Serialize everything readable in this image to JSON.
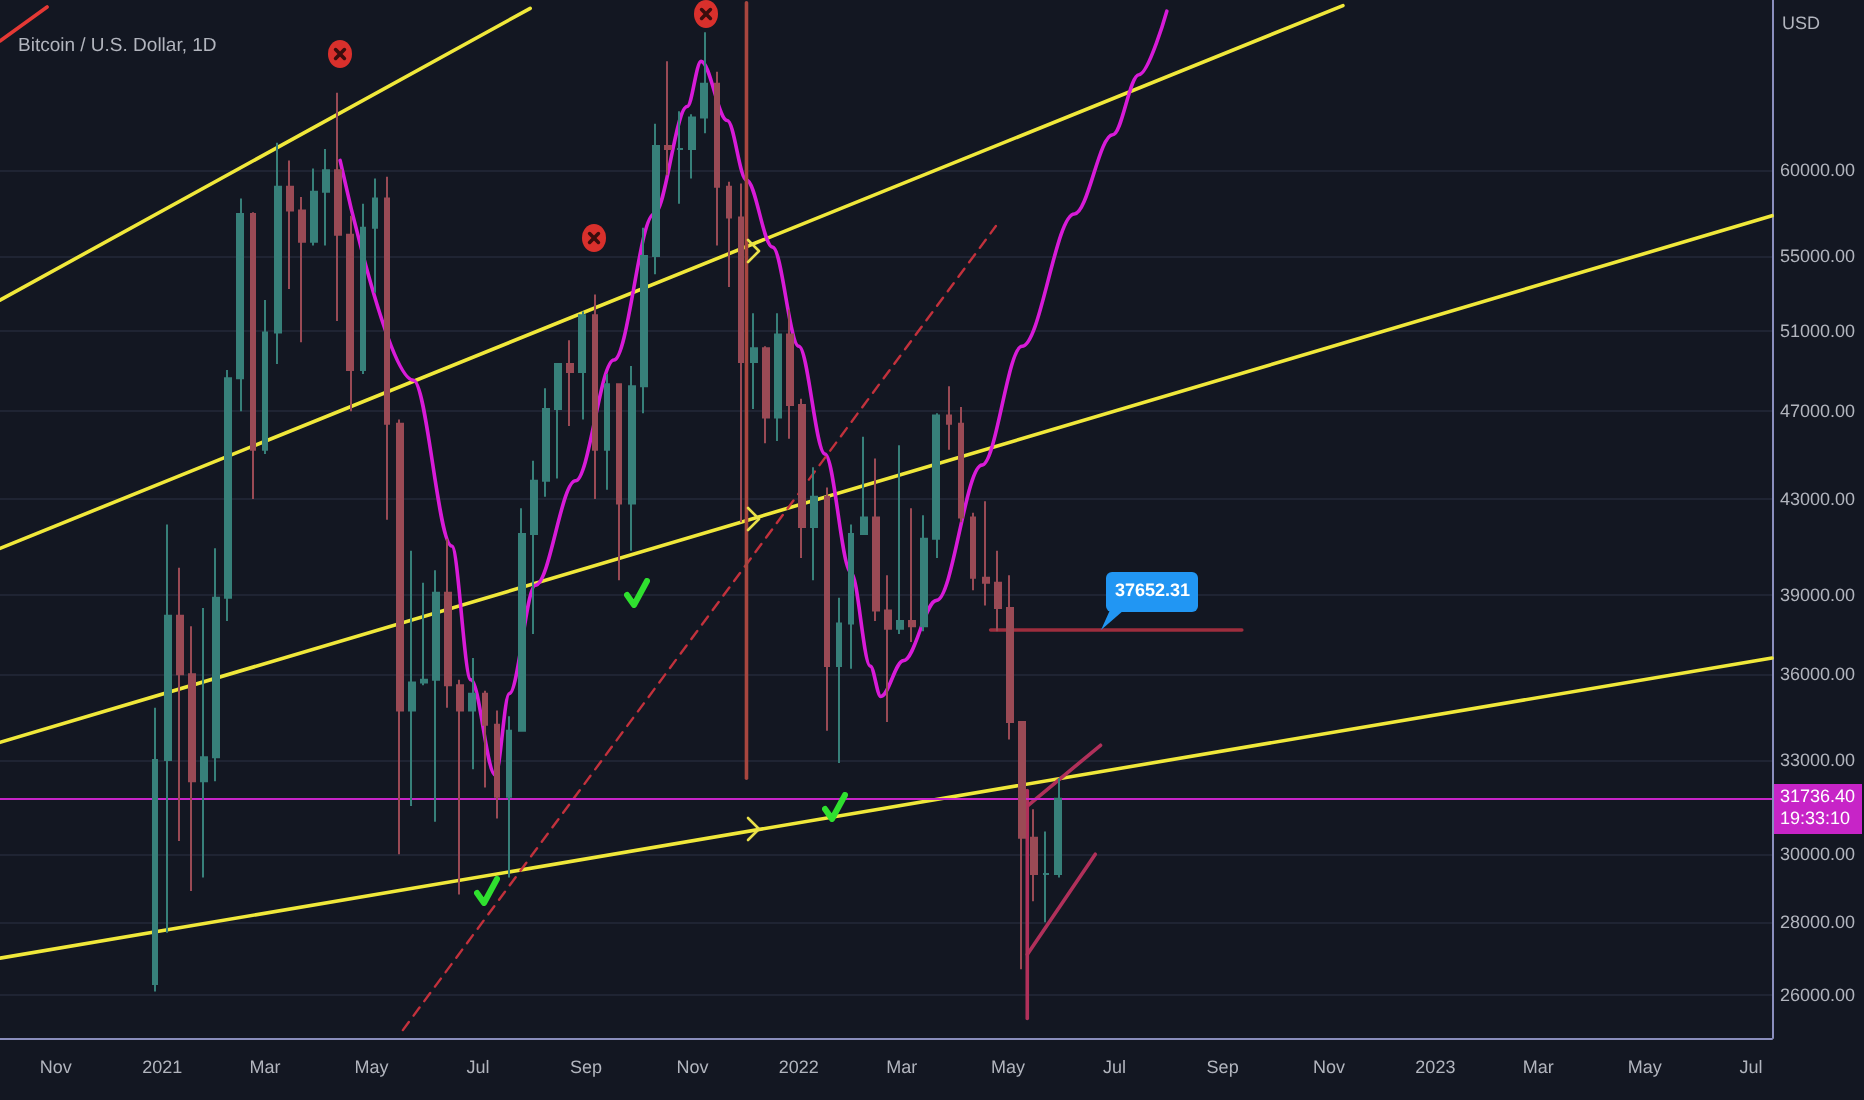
{
  "chart_data": {
    "type": "candlestick",
    "title": "Bitcoin / U.S. Dollar, 1D",
    "ylabel": "USD",
    "x": [
      "2020-12-28",
      "2021-01-04",
      "2021-01-11",
      "2021-01-18",
      "2021-01-25",
      "2021-02-01",
      "2021-02-08",
      "2021-02-15",
      "2021-02-22",
      "2021-03-01",
      "2021-03-08",
      "2021-03-15",
      "2021-03-22",
      "2021-03-29",
      "2021-04-05",
      "2021-04-12",
      "2021-04-19",
      "2021-04-26",
      "2021-05-03",
      "2021-05-10",
      "2021-05-17",
      "2021-05-24",
      "2021-05-31",
      "2021-06-07",
      "2021-06-14",
      "2021-06-21",
      "2021-06-28",
      "2021-07-05",
      "2021-07-12",
      "2021-07-19",
      "2021-07-26",
      "2021-08-02",
      "2021-08-09",
      "2021-08-16",
      "2021-08-23",
      "2021-08-30",
      "2021-09-06",
      "2021-09-13",
      "2021-09-20",
      "2021-09-27",
      "2021-10-04",
      "2021-10-11",
      "2021-10-18",
      "2021-10-25",
      "2021-11-01",
      "2021-11-08",
      "2021-11-15",
      "2021-11-22",
      "2021-11-29",
      "2021-12-06",
      "2021-12-13",
      "2021-12-20",
      "2021-12-27",
      "2022-01-03",
      "2022-01-10",
      "2022-01-17",
      "2022-01-24",
      "2022-01-31",
      "2022-02-07",
      "2022-02-14",
      "2022-02-21",
      "2022-02-28",
      "2022-03-07",
      "2022-03-14",
      "2022-03-21",
      "2022-03-28",
      "2022-04-04",
      "2022-04-11",
      "2022-04-18",
      "2022-04-25",
      "2022-05-02",
      "2022-05-09",
      "2022-05-16",
      "2022-05-23",
      "2022-05-30"
    ],
    "ohlc": [
      [
        26300,
        34800,
        26100,
        33000
      ],
      [
        33000,
        41900,
        27700,
        38200
      ],
      [
        38200,
        40100,
        30400,
        36000
      ],
      [
        36000,
        37800,
        28900,
        32300
      ],
      [
        32300,
        38500,
        29300,
        33100
      ],
      [
        33100,
        40900,
        32300,
        38900
      ],
      [
        38900,
        49000,
        38000,
        48600
      ],
      [
        48600,
        58300,
        47000,
        57400
      ],
      [
        57400,
        57500,
        43000,
        45200
      ],
      [
        45200,
        52600,
        45000,
        50900
      ],
      [
        50900,
        61700,
        49300,
        59000
      ],
      [
        59000,
        60600,
        53200,
        57600
      ],
      [
        57600,
        58400,
        50400,
        55800
      ],
      [
        55800,
        60100,
        55600,
        58700
      ],
      [
        58700,
        61300,
        55600,
        60000
      ],
      [
        60000,
        64900,
        51500,
        56200
      ],
      [
        56200,
        57300,
        47000,
        49000
      ],
      [
        49000,
        58000,
        48800,
        56600
      ],
      [
        56600,
        59500,
        53000,
        58300
      ],
      [
        58300,
        59600,
        42100,
        46400
      ],
      [
        46400,
        46600,
        30000,
        34700
      ],
      [
        34700,
        40800,
        31500,
        35700
      ],
      [
        35700,
        39500,
        35600,
        35800
      ],
      [
        35800,
        40000,
        31000,
        39100
      ],
      [
        39100,
        41300,
        34800,
        35600
      ],
      [
        35600,
        35800,
        28800,
        34700
      ],
      [
        34700,
        36600,
        32700,
        35300
      ],
      [
        35300,
        35400,
        32100,
        34200
      ],
      [
        34200,
        34700,
        31100,
        31800
      ],
      [
        31800,
        34500,
        29300,
        34000
      ],
      [
        34000,
        42600,
        34000,
        41500
      ],
      [
        41500,
        44700,
        37500,
        43800
      ],
      [
        43800,
        48100,
        43100,
        47100
      ],
      [
        47100,
        49300,
        43900,
        49300
      ],
      [
        49300,
        50500,
        46300,
        48900
      ],
      [
        48900,
        52000,
        46600,
        51800
      ],
      [
        51800,
        52900,
        43000,
        45200
      ],
      [
        45200,
        48800,
        43400,
        48300
      ],
      [
        48300,
        48300,
        39600,
        42800
      ],
      [
        42800,
        49200,
        40800,
        48200
      ],
      [
        48200,
        56600,
        46900,
        55000
      ],
      [
        55000,
        62900,
        54000,
        61500
      ],
      [
        61500,
        67000,
        59700,
        61300
      ],
      [
        61300,
        63700,
        58000,
        61300
      ],
      [
        61300,
        63500,
        59500,
        63300
      ],
      [
        63300,
        69000,
        62300,
        65500
      ],
      [
        65500,
        66300,
        55600,
        59000
      ],
      [
        59000,
        59300,
        53300,
        57200
      ],
      [
        57200,
        59200,
        42000,
        49400
      ],
      [
        49400,
        51900,
        47100,
        50100
      ],
      [
        50100,
        50200,
        45500,
        46700
      ],
      [
        46700,
        51900,
        45600,
        50800
      ],
      [
        50800,
        52100,
        45700,
        47300
      ],
      [
        47300,
        47600,
        40500,
        41800
      ],
      [
        41800,
        44400,
        39600,
        43100
      ],
      [
        43100,
        43500,
        34000,
        36300
      ],
      [
        36300,
        38900,
        32900,
        37900
      ],
      [
        37900,
        41900,
        36200,
        41500
      ],
      [
        41500,
        45800,
        41500,
        42200
      ],
      [
        42200,
        44800,
        38000,
        38400
      ],
      [
        38400,
        39800,
        34300,
        37700
      ],
      [
        37700,
        45400,
        37500,
        38000
      ],
      [
        38000,
        42600,
        37200,
        37800
      ],
      [
        37800,
        42300,
        37600,
        41300
      ],
      [
        41300,
        46900,
        40500,
        46800
      ],
      [
        46800,
        48200,
        45200,
        46400
      ],
      [
        46400,
        47200,
        42000,
        42200
      ],
      [
        42200,
        42400,
        39200,
        39700
      ],
      [
        39700,
        42900,
        38600,
        39500
      ],
      [
        39500,
        40800,
        37600,
        38500
      ],
      [
        38500,
        39800,
        33700,
        34300
      ],
      [
        34300,
        34300,
        26700,
        30500
      ],
      [
        30500,
        31400,
        28600,
        29400
      ],
      [
        29400,
        30700,
        28000,
        29400
      ],
      [
        29400,
        32400,
        29300,
        31736.4
      ]
    ],
    "series": [
      {
        "type": "line",
        "color": "#f0e83a",
        "x": [
          "2020-09-30",
          "2021-07-31"
        ],
        "values": [
          52600,
          70700
        ]
      },
      {
        "type": "line",
        "color": "#f0e83a",
        "x": [
          "2020-09-30",
          "2022-11-09"
        ],
        "values": [
          40900,
          70900
        ]
      },
      {
        "type": "line",
        "color": "#f0e83a",
        "x": [
          "2020-09-30",
          "2023-07-13"
        ],
        "values": [
          33600,
          57300
        ]
      },
      {
        "type": "line",
        "color": "#f0e83a",
        "x": [
          "2020-09-30",
          "2023-07-13"
        ],
        "values": [
          27000,
          36600
        ]
      },
      {
        "type": "line",
        "color": "#d81bd8",
        "x": [
          "2021-04-13",
          "2021-05-25",
          "2021-06-16",
          "2021-06-27",
          "2021-07-11",
          "2021-07-19",
          "2021-08-03",
          "2021-08-26",
          "2021-09-17",
          "2021-10-10",
          "2021-10-29",
          "2021-11-06",
          "2021-11-21",
          "2021-12-02",
          "2021-12-17",
          "2022-01-01",
          "2022-01-16",
          "2022-01-31",
          "2022-02-11",
          "2022-02-17",
          "2022-03-02",
          "2022-03-21",
          "2022-04-16",
          "2022-05-09",
          "2022-06-08",
          "2022-06-30",
          "2022-07-15",
          "2022-07-31"
        ],
        "values": [
          60600,
          48500,
          41000,
          35800,
          32500,
          35300,
          39400,
          43800,
          49500,
          57400,
          64000,
          67000,
          63100,
          59400,
          55500,
          50200,
          45000,
          39900,
          36300,
          35200,
          36500,
          38800,
          44500,
          50200,
          57400,
          62200,
          66100,
          70500
        ]
      },
      {
        "type": "line",
        "color": "#c2313c",
        "line_style": "dashed",
        "x": [
          "2021-05-19",
          "2022-04-24"
        ],
        "values": [
          25100,
          56700
        ]
      },
      {
        "type": "line",
        "color": "#a8463f",
        "x": [
          "2021-12-02",
          "2021-12-02"
        ],
        "values": [
          71100,
          32400
        ]
      },
      {
        "type": "line",
        "color": "#9e2e3e",
        "x": [
          "2022-04-21",
          "2022-09-12"
        ],
        "values": [
          37652.31,
          37652.31
        ]
      },
      {
        "type": "line",
        "color": "#b0305a",
        "x": [
          "2022-05-12",
          "2022-06-20"
        ],
        "values": [
          27100,
          30000
        ]
      },
      {
        "type": "line",
        "color": "#b0305a",
        "x": [
          "2022-05-12",
          "2022-06-23"
        ],
        "values": [
          31500,
          33500
        ]
      },
      {
        "type": "line",
        "color": "#b0305a",
        "x": [
          "2022-05-12",
          "2022-05-12"
        ],
        "values": [
          32000,
          25400
        ]
      },
      {
        "type": "line",
        "color": "#e53935",
        "x": [
          "2020-09-30",
          "2020-10-27"
        ],
        "values": [
          68400,
          70800
        ]
      }
    ],
    "xlim": [
      "2020-09-30",
      "2023-07-13"
    ],
    "xticks": [
      {
        "value": "2020-11-01",
        "label": "Nov"
      },
      {
        "value": "2021-01-01",
        "label": "2021"
      },
      {
        "value": "2021-03-01",
        "label": "Mar"
      },
      {
        "value": "2021-05-01",
        "label": "May"
      },
      {
        "value": "2021-07-01",
        "label": "Jul"
      },
      {
        "value": "2021-09-01",
        "label": "Sep"
      },
      {
        "value": "2021-11-01",
        "label": "Nov"
      },
      {
        "value": "2022-01-01",
        "label": "2022"
      },
      {
        "value": "2022-03-01",
        "label": "Mar"
      },
      {
        "value": "2022-05-01",
        "label": "May"
      },
      {
        "value": "2022-07-01",
        "label": "Jul"
      },
      {
        "value": "2022-09-01",
        "label": "Sep"
      },
      {
        "value": "2022-11-01",
        "label": "Nov"
      },
      {
        "value": "2023-01-01",
        "label": "2023"
      },
      {
        "value": "2023-03-01",
        "label": "Mar"
      },
      {
        "value": "2023-05-01",
        "label": "May"
      },
      {
        "value": "2023-07-01",
        "label": "Jul"
      }
    ],
    "ylim": [
      24900,
      71300
    ],
    "yticks": [
      {
        "value": 26000,
        "label": "26000.00"
      },
      {
        "value": 28000,
        "label": "28000.00"
      },
      {
        "value": 30000,
        "label": "30000.00"
      },
      {
        "value": 33000,
        "label": "33000.00"
      },
      {
        "value": 36000,
        "label": "36000.00"
      },
      {
        "value": 39000,
        "label": "39000.00"
      },
      {
        "value": 43000,
        "label": "43000.00"
      },
      {
        "value": 47000,
        "label": "47000.00"
      },
      {
        "value": 51000,
        "label": "51000.00"
      },
      {
        "value": 55000,
        "label": "55000.00"
      },
      {
        "value": 60000,
        "label": "60000.00"
      }
    ],
    "log": true,
    "grid": "y",
    "marker": "none",
    "ref_lines": [
      {
        "axis": "y",
        "value": 31736.4,
        "label": "31736.40",
        "color": "#c724c7"
      }
    ],
    "annotations": [
      "19:33:10",
      {
        "text": "37652.31",
        "x": "2022-06-23",
        "y": 37652.31
      }
    ]
  }
}
